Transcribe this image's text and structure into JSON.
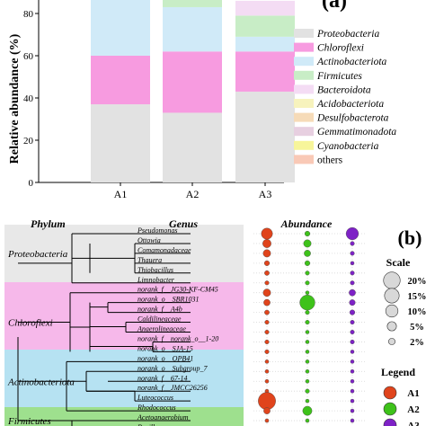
{
  "panel_a": {
    "panel_label": "(a)",
    "chart_data": {
      "type": "bar",
      "stacked": true,
      "ylabel": "Relative abundance (%)",
      "ylim": [
        0,
        100
      ],
      "yticks": [
        0,
        20,
        40,
        60,
        80
      ],
      "categories": [
        "A1",
        "A2",
        "A3"
      ],
      "series": [
        {
          "name": "Proteobacteria",
          "color": "#e2e2e2",
          "values": [
            37,
            33,
            43
          ]
        },
        {
          "name": "Chloroflexi",
          "color": "#f79be0",
          "values": [
            23,
            29,
            19
          ]
        },
        {
          "name": "Actinobacteriota",
          "color": "#d0eaf8",
          "values": [
            30,
            21,
            7
          ]
        },
        {
          "name": "Firmicutes",
          "color": "#c8edc6",
          "values": [
            0,
            4,
            10
          ]
        },
        {
          "name": "Bacteroidota",
          "color": "#f4dcf4",
          "values": [
            0,
            2,
            7
          ]
        },
        {
          "name": "Acidobacteriota",
          "color": "#f7f3bd",
          "values": [
            0,
            0,
            0
          ]
        },
        {
          "name": "Desulfobacterota",
          "color": "#f6dbb8",
          "values": [
            0,
            0,
            0
          ]
        },
        {
          "name": "Gemmatimonadota",
          "color": "#e7cfe0",
          "values": [
            0,
            0,
            0
          ]
        },
        {
          "name": "Cyanobacteria",
          "color": "#f7f59a",
          "values": [
            0,
            0,
            0
          ]
        },
        {
          "name": "others",
          "color": "#f9c9b6",
          "values": [
            0,
            0,
            0
          ]
        }
      ],
      "grid": false,
      "legend_position": "right"
    }
  },
  "panel_b": {
    "panel_label": "(b)",
    "headers": {
      "phylum": "Phylum",
      "genus": "Genus",
      "abundance": "Abundance"
    },
    "phyla": [
      {
        "name": "Proteobacteria",
        "color": "#e8e8e8"
      },
      {
        "name": "Chloroflexi",
        "color": "#f6b8ea"
      },
      {
        "name": "Actinobacteriota",
        "color": "#b6e2f2"
      },
      {
        "name": "Firmicutes",
        "color": "#9ee08e"
      }
    ],
    "genera": [
      "Pseudomonas",
      "Ottowia",
      "Comamonadaceae",
      "Thauera",
      "Thiobacillus",
      "Limnobacter",
      "norank_f__JG30-KF-CM45",
      "norank_o__SBR1031",
      "norank_f__A4b",
      "Caldilineaceae",
      "Anaerolineaceae",
      "norank_f__norank_o__1-20",
      "norank_o__SJA-15",
      "norank_o__OPB41",
      "norank_o__Subgroup_7",
      "norank_f__67-14",
      "norank_f__JMCC26256",
      "Luteococcus",
      "Rhodococcus",
      "Acetoanaerobium",
      "Bacillus"
    ],
    "abundance_percent": {
      "samples": [
        "A1",
        "A2",
        "A3"
      ],
      "colors": [
        "#e0441c",
        "#3ec21a",
        "#7e22c6"
      ],
      "values": [
        [
          8,
          1,
          10
        ],
        [
          4,
          3,
          0.5
        ],
        [
          3,
          2,
          0.5
        ],
        [
          1,
          1,
          0.3
        ],
        [
          0.8,
          0.5,
          0.5
        ],
        [
          0.5,
          0.5,
          0.5
        ],
        [
          3,
          0.3,
          2
        ],
        [
          2,
          16,
          1.5
        ],
        [
          0.8,
          0.5,
          1
        ],
        [
          0.5,
          0.5,
          0.5
        ],
        [
          0.5,
          0.3,
          0.5
        ],
        [
          0.5,
          0.3,
          0.5
        ],
        [
          0.5,
          0.3,
          0.3
        ],
        [
          0.3,
          0.3,
          0.3
        ],
        [
          0.3,
          0.3,
          0.3
        ],
        [
          0.3,
          0.3,
          0.3
        ],
        [
          0.3,
          0.5,
          0.3
        ],
        [
          22,
          0.3,
          0.3
        ],
        [
          2,
          5,
          0.3
        ],
        [
          0.3,
          0.3,
          0.3
        ],
        [
          0.3,
          0.3,
          0.3
        ]
      ]
    },
    "scale": {
      "title": "Scale",
      "entries": [
        {
          "label": "20%",
          "value": 20
        },
        {
          "label": "15%",
          "value": 15
        },
        {
          "label": "10%",
          "value": 10
        },
        {
          "label": "5%",
          "value": 5
        },
        {
          "label": "2%",
          "value": 2
        }
      ]
    },
    "legend": {
      "title": "Legend",
      "labels": [
        "A1",
        "A2",
        "A3"
      ]
    }
  }
}
